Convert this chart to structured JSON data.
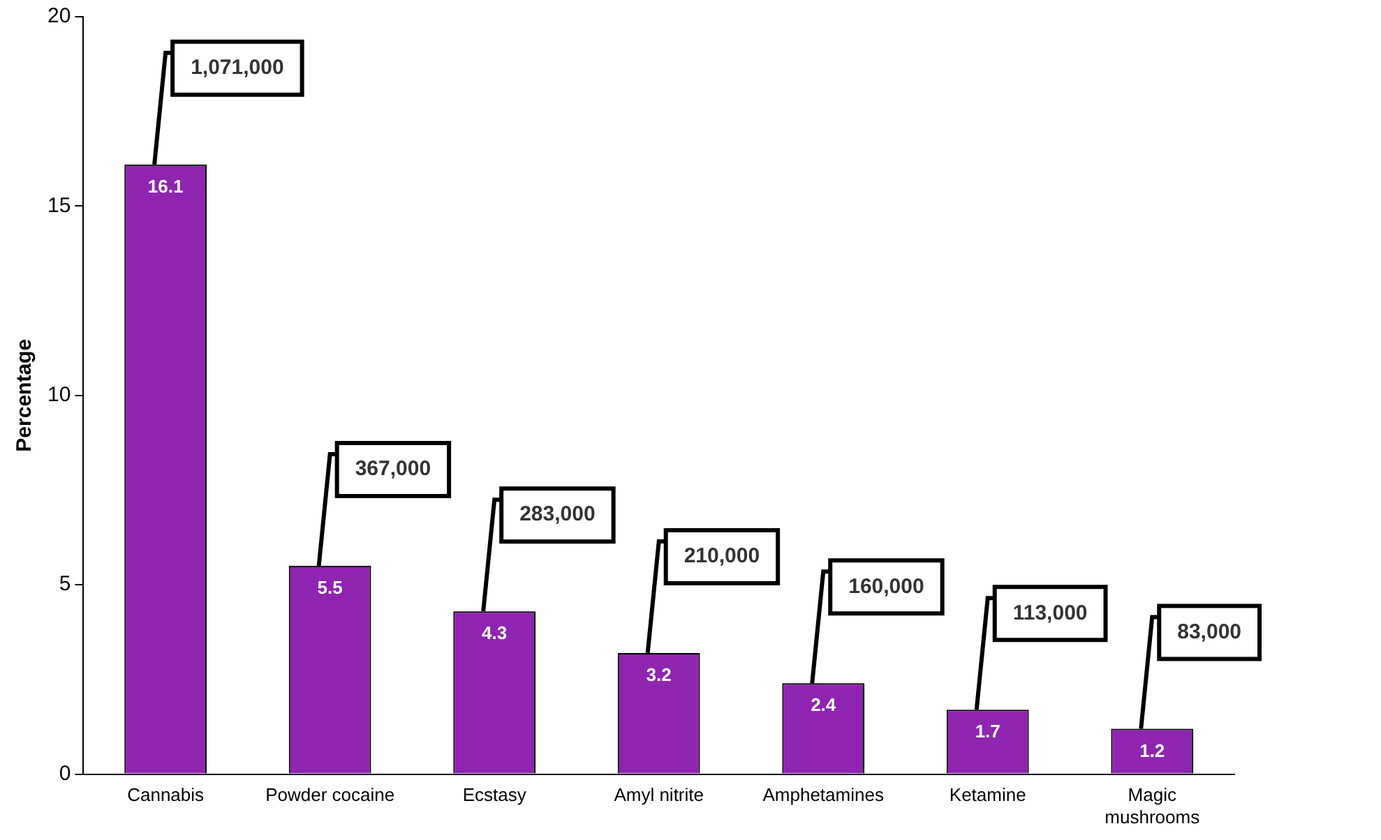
{
  "chart_data": {
    "type": "bar",
    "ylabel": "Percentage",
    "categories": [
      "Cannabis",
      "Powder cocaine",
      "Ecstasy",
      "Amyl nitrite",
      "Amphetamines",
      "Ketamine",
      "Magic mushrooms"
    ],
    "values": [
      16.1,
      5.5,
      4.3,
      3.2,
      2.4,
      1.7,
      1.2
    ],
    "color": "#8e24b0",
    "ylim": [
      0,
      20
    ],
    "yticks": [
      0,
      5,
      10,
      15,
      20
    ],
    "grid": false,
    "legend": false,
    "data_labels": true,
    "annotations": [
      {
        "text": "1,071,000",
        "x": "Cannabis",
        "y": 16.1
      },
      {
        "text": "367,000",
        "x": "Powder cocaine",
        "y": 5.5
      },
      {
        "text": "283,000",
        "x": "Ecstasy",
        "y": 4.3
      },
      {
        "text": "210,000",
        "x": "Amyl nitrite",
        "y": 3.2
      },
      {
        "text": "160,000",
        "x": "Amphetamines",
        "y": 2.4
      },
      {
        "text": "113,000",
        "x": "Ketamine",
        "y": 1.7
      },
      {
        "text": "83,000",
        "x": "Magic mushrooms",
        "y": 1.2
      }
    ]
  }
}
